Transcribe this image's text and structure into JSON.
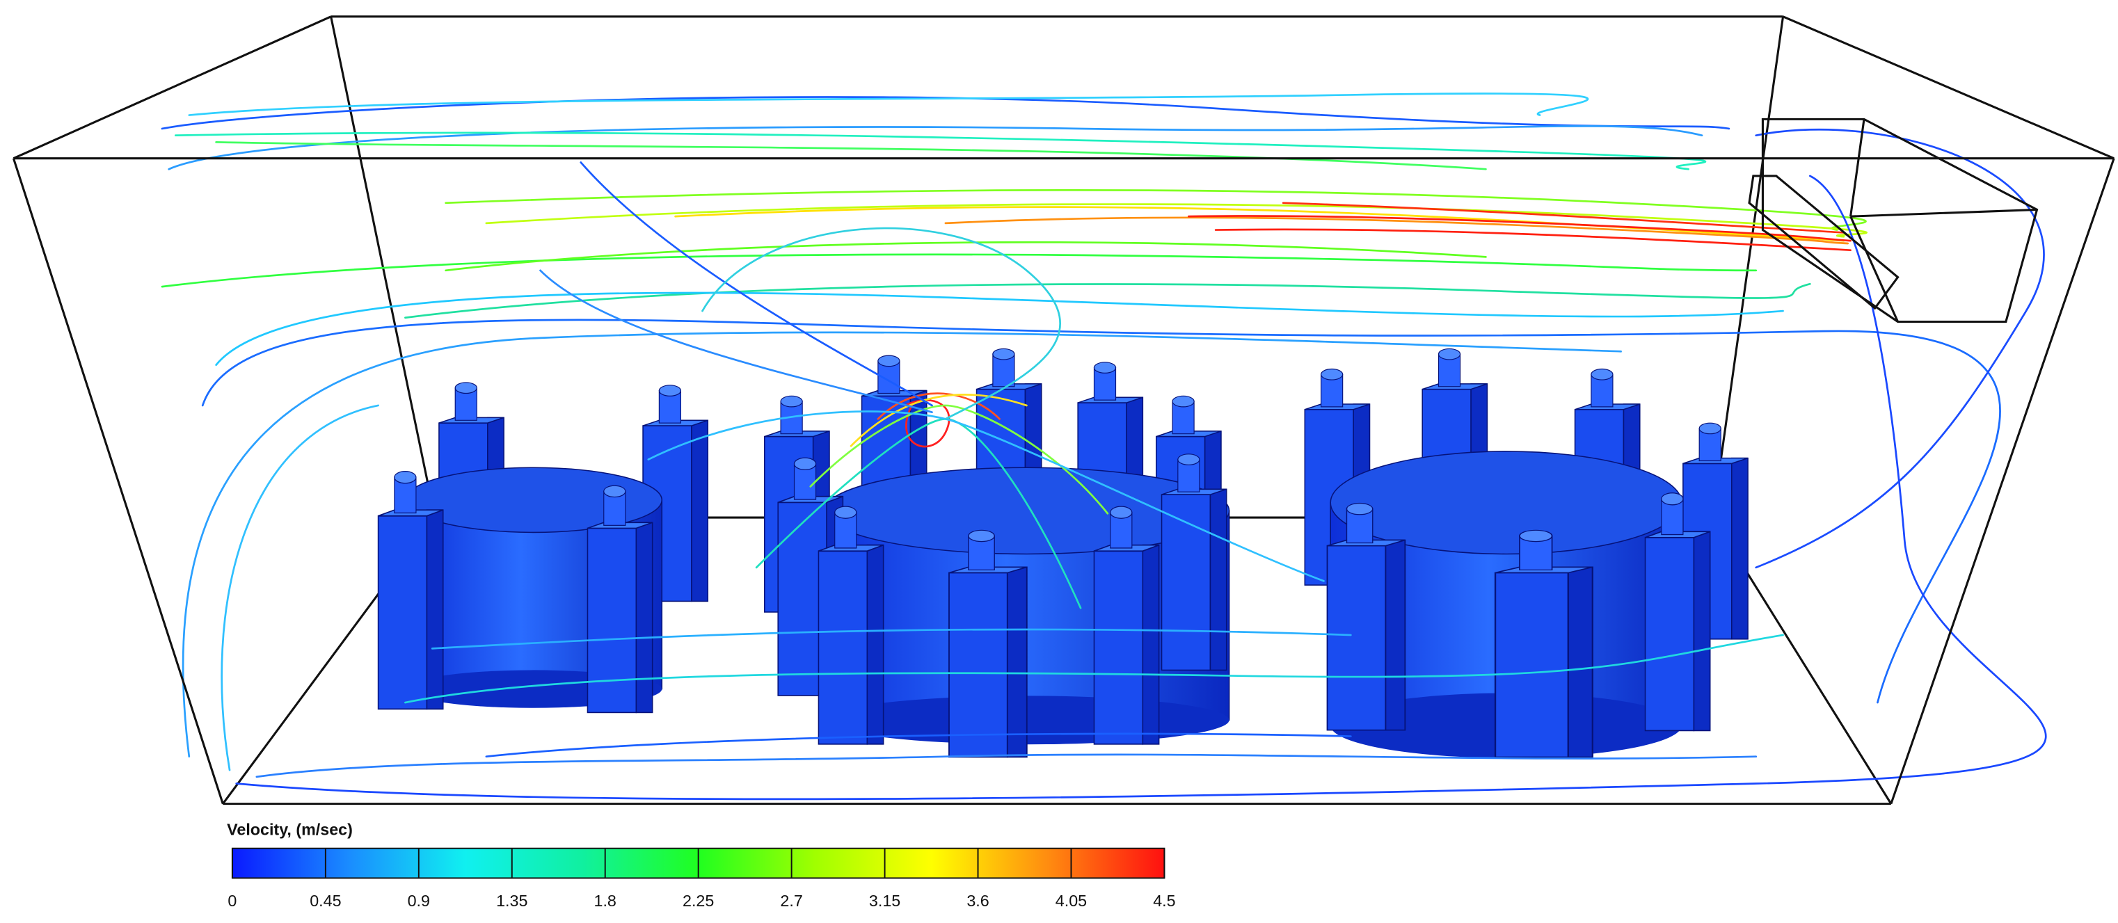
{
  "chart_data": {
    "type": "colorbar",
    "title": "Velocity, (m/sec)",
    "vlim": [
      0,
      4.5
    ],
    "ticks": [
      0,
      0.45,
      0.9,
      1.35,
      1.8,
      2.25,
      2.7,
      3.15,
      3.6,
      4.05,
      4.5
    ],
    "colormap": [
      "#0a1aff",
      "#1a8cff",
      "#10f0f0",
      "#10f0a0",
      "#20ff20",
      "#a0ff00",
      "#ffff00",
      "#ff8c10",
      "#ff1010"
    ]
  }
}
